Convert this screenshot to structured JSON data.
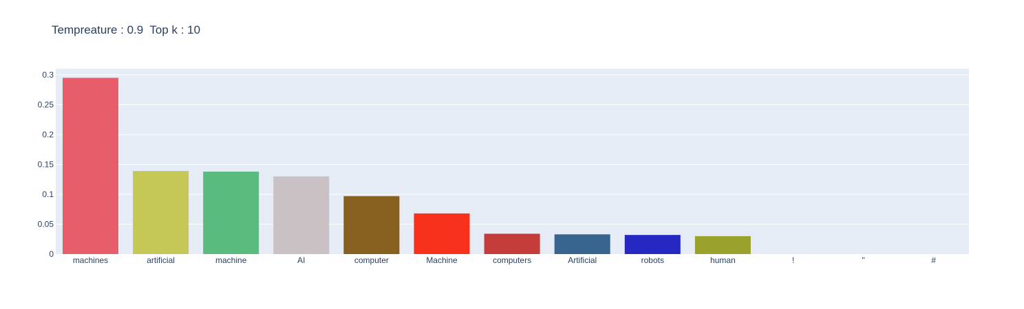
{
  "chart_data": {
    "type": "bar",
    "title": "Tempreature : 0.9  Top k : 10",
    "categories": [
      "machines",
      "artificial",
      "machine",
      "AI",
      "computer",
      "Machine",
      "computers",
      "Artificial",
      "robots",
      "human",
      "!",
      "\"",
      "#"
    ],
    "values": [
      0.295,
      0.139,
      0.138,
      0.13,
      0.097,
      0.068,
      0.034,
      0.033,
      0.032,
      0.03,
      0,
      0,
      0
    ],
    "colors": [
      "#e85d6a",
      "#c5c857",
      "#59bb7d",
      "#c9c1c3",
      "#875f1f",
      "#f7311b",
      "#c43c39",
      "#37658f",
      "#2529c2",
      "#9aa22c",
      "#cccccc",
      "#cccccc",
      "#cccccc"
    ],
    "ylim": [
      0,
      0.3
    ],
    "yticks": [
      0,
      0.05,
      0.1,
      0.15,
      0.2,
      0.25,
      0.3
    ],
    "ytick_labels": [
      "0",
      "0.05",
      "0.1",
      "0.15",
      "0.2",
      "0.25",
      "0.3"
    ],
    "xlabel": "",
    "ylabel": "",
    "grid": true,
    "plot_bg": "#e5ecf6",
    "grid_color": "#ffffff",
    "text_color": "#2a3f5f"
  }
}
